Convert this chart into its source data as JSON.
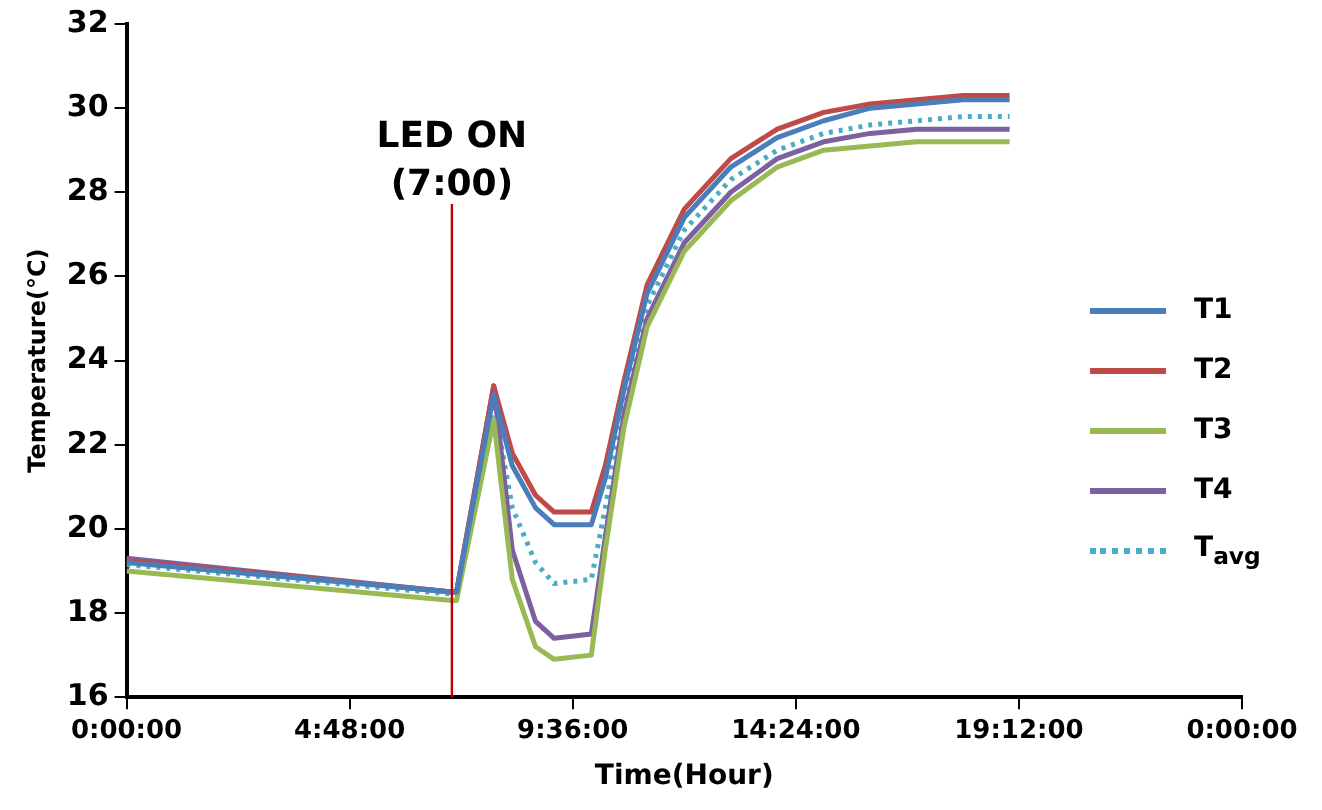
{
  "chart_data": {
    "type": "line",
    "xlabel": "Time(Hour)",
    "ylabel": "Temperature(°C)",
    "x": [
      "--01-01T00:00",
      "--01-01T07:00",
      "--01-01T07:06",
      "--01-01T07:54",
      "--01-01T08:18",
      "--01-01T08:48",
      "--01-01T09:12",
      "--01-01T10:00",
      "--01-01T10:18",
      "--01-01T10:42",
      "--01-01T11:12",
      "--01-01T12:00",
      "--01-01T13:00",
      "--01-01T14:00",
      "--01-01T15:00",
      "--01-01T16:00",
      "--01-01T17:00",
      "--01-01T18:00",
      "--01-01T19:00"
    ],
    "xlim": [
      "--01-01T00:00",
      "--01-02T00:00"
    ],
    "xticks": [
      {
        "value": "--01-01T00:00",
        "label": "0:00:00"
      },
      {
        "value": "--01-01T04:48",
        "label": "4:48:00"
      },
      {
        "value": "--01-01T09:36",
        "label": "9:36:00"
      },
      {
        "value": "--01-01T14:24",
        "label": "14:24:00"
      },
      {
        "value": "--01-01T19:12",
        "label": "19:12:00"
      },
      {
        "value": "--01-02T00:00",
        "label": "0:00:00"
      }
    ],
    "ylim": [
      16,
      32
    ],
    "yticks": [
      16,
      18,
      20,
      22,
      24,
      26,
      28,
      30,
      32
    ],
    "series": [
      {
        "name": "T1",
        "color": "#4a7ebb",
        "values": [
          19.2,
          18.5,
          18.5,
          23.2,
          21.5,
          20.5,
          20.1,
          20.1,
          21.2,
          23.3,
          25.6,
          27.4,
          28.6,
          29.3,
          29.7,
          30.0,
          30.1,
          30.2,
          30.2
        ]
      },
      {
        "name": "T2",
        "color": "#be4b48",
        "values": [
          19.25,
          18.5,
          18.5,
          23.4,
          21.8,
          20.8,
          20.4,
          20.4,
          21.5,
          23.5,
          25.8,
          27.6,
          28.8,
          29.5,
          29.9,
          30.1,
          30.2,
          30.3,
          30.3
        ]
      },
      {
        "name": "T3",
        "color": "#98b954",
        "values": [
          19.0,
          18.3,
          18.3,
          22.6,
          18.8,
          17.2,
          16.9,
          17.0,
          19.5,
          22.4,
          24.8,
          26.6,
          27.8,
          28.6,
          29.0,
          29.1,
          29.2,
          29.2,
          29.2
        ]
      },
      {
        "name": "T4",
        "color": "#7d60a0",
        "values": [
          19.3,
          18.5,
          18.5,
          23.4,
          19.5,
          17.8,
          17.4,
          17.5,
          19.8,
          22.7,
          25.0,
          26.8,
          28.0,
          28.8,
          29.2,
          29.4,
          29.5,
          29.5,
          29.5
        ]
      },
      {
        "name": "T$_{avg}$",
        "color": "#4bacc6",
        "line_style": "dotted",
        "values": [
          19.15,
          18.45,
          18.45,
          23.0,
          20.5,
          19.2,
          18.7,
          18.8,
          20.5,
          23.0,
          25.3,
          27.1,
          28.3,
          29.0,
          29.4,
          29.6,
          29.7,
          29.8,
          29.8
        ]
      }
    ],
    "ref_lines": [
      {
        "axis": "x",
        "value": "--01-01T07:00",
        "label": "LED ON (7:00)",
        "color": "#c00000"
      }
    ],
    "grid": false,
    "legend": "right",
    "marker": "none",
    "line_style": "solid"
  }
}
